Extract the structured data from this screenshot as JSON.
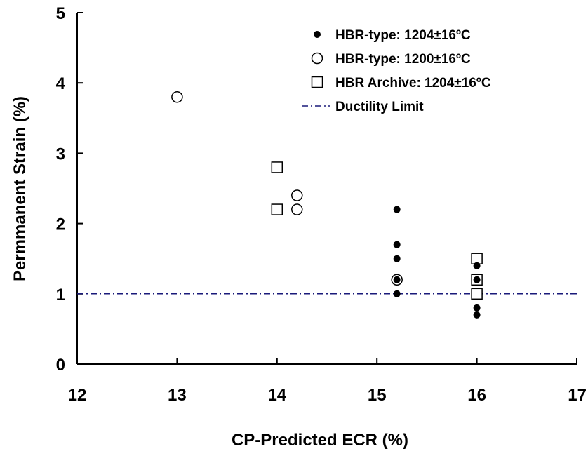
{
  "chart_data": {
    "type": "scatter",
    "xlabel": "CP-Predicted  ECR (%)",
    "ylabel": "Permmanent Strain (%)",
    "xlim": [
      12,
      17
    ],
    "ylim": [
      0,
      5
    ],
    "xticks": [
      "12",
      "13",
      "14",
      "15",
      "16",
      "17"
    ],
    "yticks": [
      "0",
      "1",
      "2",
      "3",
      "4",
      "5"
    ],
    "grid": false,
    "legend_position": "top-right",
    "series": [
      {
        "name": "HBR-type: 1204±16ºC",
        "marker": "filled-circle",
        "color": "#000000",
        "points": [
          [
            15.2,
            2.2
          ],
          [
            15.2,
            1.7
          ],
          [
            15.2,
            1.5
          ],
          [
            15.2,
            1.2
          ],
          [
            15.2,
            1.0
          ],
          [
            16.0,
            1.4
          ],
          [
            16.0,
            1.2
          ],
          [
            16.0,
            0.8
          ],
          [
            16.0,
            0.7
          ]
        ]
      },
      {
        "name": "HBR-type: 1200±16ºC",
        "marker": "open-circle",
        "color": "#000000",
        "points": [
          [
            13.0,
            3.8
          ],
          [
            14.2,
            2.4
          ],
          [
            14.2,
            2.2
          ],
          [
            15.2,
            1.2
          ]
        ]
      },
      {
        "name": "HBR Archive: 1204±16ºC",
        "marker": "open-square",
        "color": "#000000",
        "points": [
          [
            14.0,
            2.8
          ],
          [
            14.0,
            2.2
          ],
          [
            16.0,
            1.5
          ],
          [
            16.0,
            1.2
          ],
          [
            16.0,
            1.0
          ]
        ]
      }
    ],
    "reference_lines": [
      {
        "name": "Ductility Limit",
        "y": 1.0,
        "style": "dash-dot",
        "color": "#1a1a7a"
      }
    ]
  }
}
